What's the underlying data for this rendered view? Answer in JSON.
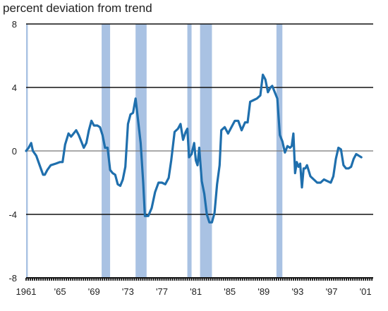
{
  "chart_data": {
    "type": "line",
    "title": "percent deviation from trend",
    "xlabel": "",
    "ylabel": "",
    "xlim": [
      1961.0,
      2001.9
    ],
    "ylim": [
      -8,
      8
    ],
    "y_ticks": [
      -8,
      -4,
      0,
      4,
      8
    ],
    "x_ticks": [
      {
        "value": 1961,
        "label": "1961"
      },
      {
        "value": 1965,
        "label": "'65"
      },
      {
        "value": 1969,
        "label": "'69"
      },
      {
        "value": 1973,
        "label": "'73"
      },
      {
        "value": 1977,
        "label": "'77"
      },
      {
        "value": 1981,
        "label": "'81"
      },
      {
        "value": 1985,
        "label": "'85"
      },
      {
        "value": 1989,
        "label": "'89"
      },
      {
        "value": 1993,
        "label": "'93"
      },
      {
        "value": 1997,
        "label": "'97"
      },
      {
        "value": 2001,
        "label": "'01"
      }
    ],
    "grid": "horizontal",
    "colors": {
      "line": "#1f6fad",
      "shade": "#a9c2e3",
      "grid": "#111111",
      "zero": "#777777"
    },
    "recession_shading": [
      {
        "start": 1961.0,
        "end": 1961.2
      },
      {
        "start": 1969.9,
        "end": 1970.9
      },
      {
        "start": 1973.9,
        "end": 1975.2
      },
      {
        "start": 1980.0,
        "end": 1980.5
      },
      {
        "start": 1981.5,
        "end": 1982.9
      },
      {
        "start": 1990.5,
        "end": 1991.2
      }
    ],
    "series": [
      {
        "values": [
          [
            1961.0,
            0.0
          ],
          [
            1961.3,
            0.2
          ],
          [
            1961.6,
            0.5
          ],
          [
            1961.8,
            0.0
          ],
          [
            1962.2,
            -0.3
          ],
          [
            1962.6,
            -0.9
          ],
          [
            1963.0,
            -1.5
          ],
          [
            1963.2,
            -1.5
          ],
          [
            1963.5,
            -1.2
          ],
          [
            1963.9,
            -0.9
          ],
          [
            1964.5,
            -0.8
          ],
          [
            1965.0,
            -0.7
          ],
          [
            1965.3,
            -0.7
          ],
          [
            1965.6,
            0.4
          ],
          [
            1966.0,
            1.1
          ],
          [
            1966.3,
            0.9
          ],
          [
            1966.6,
            1.1
          ],
          [
            1966.9,
            1.3
          ],
          [
            1967.2,
            1.0
          ],
          [
            1967.5,
            0.6
          ],
          [
            1967.8,
            0.2
          ],
          [
            1968.1,
            0.5
          ],
          [
            1968.4,
            1.3
          ],
          [
            1968.7,
            1.9
          ],
          [
            1969.0,
            1.6
          ],
          [
            1969.4,
            1.6
          ],
          [
            1969.7,
            1.5
          ],
          [
            1970.0,
            1.0
          ],
          [
            1970.3,
            0.2
          ],
          [
            1970.6,
            0.2
          ],
          [
            1970.9,
            -1.2
          ],
          [
            1971.2,
            -1.4
          ],
          [
            1971.5,
            -1.5
          ],
          [
            1971.8,
            -2.1
          ],
          [
            1972.1,
            -2.2
          ],
          [
            1972.4,
            -1.8
          ],
          [
            1972.7,
            -1.0
          ],
          [
            1973.0,
            1.7
          ],
          [
            1973.3,
            2.3
          ],
          [
            1973.6,
            2.4
          ],
          [
            1973.9,
            3.3
          ],
          [
            1974.2,
            1.9
          ],
          [
            1974.5,
            0.5
          ],
          [
            1974.8,
            -2.0
          ],
          [
            1975.0,
            -4.1
          ],
          [
            1975.4,
            -4.1
          ],
          [
            1975.8,
            -3.6
          ],
          [
            1976.2,
            -2.6
          ],
          [
            1976.6,
            -2.0
          ],
          [
            1977.0,
            -2.0
          ],
          [
            1977.4,
            -2.1
          ],
          [
            1977.8,
            -1.7
          ],
          [
            1978.1,
            -0.6
          ],
          [
            1978.5,
            1.2
          ],
          [
            1978.9,
            1.4
          ],
          [
            1979.2,
            1.7
          ],
          [
            1979.5,
            0.7
          ],
          [
            1979.8,
            1.2
          ],
          [
            1980.0,
            1.4
          ],
          [
            1980.2,
            -0.4
          ],
          [
            1980.5,
            -0.2
          ],
          [
            1980.8,
            0.5
          ],
          [
            1981.0,
            -0.6
          ],
          [
            1981.2,
            -0.9
          ],
          [
            1981.4,
            0.2
          ],
          [
            1981.7,
            -1.9
          ],
          [
            1982.0,
            -2.7
          ],
          [
            1982.3,
            -4.0
          ],
          [
            1982.6,
            -4.5
          ],
          [
            1982.9,
            -4.5
          ],
          [
            1983.2,
            -3.9
          ],
          [
            1983.5,
            -2.1
          ],
          [
            1983.8,
            -0.9
          ],
          [
            1984.0,
            1.3
          ],
          [
            1984.4,
            1.5
          ],
          [
            1984.8,
            1.1
          ],
          [
            1985.2,
            1.5
          ],
          [
            1985.6,
            1.9
          ],
          [
            1986.0,
            1.9
          ],
          [
            1986.4,
            1.3
          ],
          [
            1986.8,
            1.8
          ],
          [
            1987.1,
            1.8
          ],
          [
            1987.4,
            3.1
          ],
          [
            1987.8,
            3.2
          ],
          [
            1988.2,
            3.3
          ],
          [
            1988.6,
            3.5
          ],
          [
            1988.9,
            4.8
          ],
          [
            1989.2,
            4.5
          ],
          [
            1989.5,
            3.7
          ],
          [
            1989.8,
            4.0
          ],
          [
            1990.0,
            4.1
          ],
          [
            1990.3,
            3.7
          ],
          [
            1990.6,
            3.3
          ],
          [
            1990.9,
            1.0
          ],
          [
            1991.2,
            0.6
          ],
          [
            1991.5,
            -0.1
          ],
          [
            1991.8,
            0.3
          ],
          [
            1992.1,
            0.2
          ],
          [
            1992.3,
            0.3
          ],
          [
            1992.5,
            1.1
          ],
          [
            1992.7,
            -1.4
          ],
          [
            1992.9,
            -0.7
          ],
          [
            1993.1,
            -1.0
          ],
          [
            1993.3,
            -0.8
          ],
          [
            1993.5,
            -2.3
          ],
          [
            1993.7,
            -1.1
          ],
          [
            1993.9,
            -1.1
          ],
          [
            1994.1,
            -0.9
          ],
          [
            1994.5,
            -1.6
          ],
          [
            1994.9,
            -1.8
          ],
          [
            1995.3,
            -2.0
          ],
          [
            1995.7,
            -2.0
          ],
          [
            1996.1,
            -1.8
          ],
          [
            1996.5,
            -1.9
          ],
          [
            1996.9,
            -2.0
          ],
          [
            1997.2,
            -1.6
          ],
          [
            1997.5,
            -0.5
          ],
          [
            1997.8,
            0.2
          ],
          [
            1998.1,
            0.1
          ],
          [
            1998.4,
            -0.9
          ],
          [
            1998.7,
            -1.1
          ],
          [
            1999.0,
            -1.1
          ],
          [
            1999.3,
            -1.0
          ],
          [
            1999.6,
            -0.5
          ],
          [
            1999.9,
            -0.2
          ],
          [
            2000.2,
            -0.3
          ],
          [
            2000.5,
            -0.4
          ]
        ]
      }
    ]
  }
}
